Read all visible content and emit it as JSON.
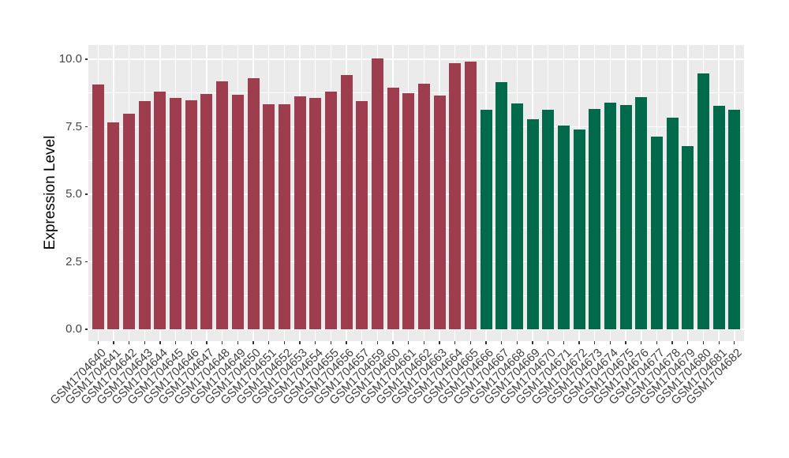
{
  "chart_data": {
    "type": "bar",
    "title": "",
    "xlabel": "",
    "ylabel": "Expression Level",
    "ylim": [
      -0.45,
      10.55
    ],
    "yticks": [
      0,
      2.5,
      5,
      7.5,
      10
    ],
    "ytick_labels": [
      "0.0",
      "2.5",
      "5.0",
      "7.5",
      "10.0"
    ],
    "minor_yticks": [
      1.25,
      3.75,
      6.25,
      8.75
    ],
    "grid": "white major+minor horizontal lines and vertical line at each category on grey panel",
    "legend_position": "none",
    "panel_background": "#EBEBEB",
    "gridline_color": "#FFFFFF",
    "axis_text_color": "#454545",
    "group_colors": {
      "maroon": "#9E3D4D",
      "green": "#006A4A"
    },
    "categories": [
      "GSM1704640",
      "GSM1704641",
      "GSM1704642",
      "GSM1704643",
      "GSM1704644",
      "GSM1704645",
      "GSM1704646",
      "GSM1704647",
      "GSM1704648",
      "GSM1704649",
      "GSM1704650",
      "GSM1704651",
      "GSM1704652",
      "GSM1704653",
      "GSM1704654",
      "GSM1704655",
      "GSM1704656",
      "GSM1704657",
      "GSM1704659",
      "GSM1704660",
      "GSM1704661",
      "GSM1704662",
      "GSM1704663",
      "GSM1704664",
      "GSM1704665",
      "GSM1704666",
      "GSM1704667",
      "GSM1704668",
      "GSM1704669",
      "GSM1704670",
      "GSM1704671",
      "GSM1704672",
      "GSM1704673",
      "GSM1704674",
      "GSM1704675",
      "GSM1704676",
      "GSM1704677",
      "GSM1704678",
      "GSM1704679",
      "GSM1704680",
      "GSM1704681",
      "GSM1704682"
    ],
    "bar_groups": [
      "maroon",
      "maroon",
      "maroon",
      "maroon",
      "maroon",
      "maroon",
      "maroon",
      "maroon",
      "maroon",
      "maroon",
      "maroon",
      "maroon",
      "maroon",
      "maroon",
      "maroon",
      "maroon",
      "maroon",
      "maroon",
      "maroon",
      "maroon",
      "maroon",
      "maroon",
      "maroon",
      "maroon",
      "maroon",
      "green",
      "green",
      "green",
      "green",
      "green",
      "green",
      "green",
      "green",
      "green",
      "green",
      "green",
      "green",
      "green",
      "green",
      "green",
      "green",
      "green"
    ],
    "series": [
      {
        "name": "Expression Level",
        "values": [
          9.06,
          7.66,
          7.99,
          8.44,
          8.81,
          8.56,
          8.49,
          8.71,
          9.19,
          8.68,
          9.31,
          8.32,
          8.32,
          8.63,
          8.57,
          8.8,
          9.42,
          8.46,
          10.03,
          8.96,
          8.74,
          9.08,
          8.65,
          9.85,
          9.9,
          8.13,
          9.15,
          8.36,
          7.79,
          8.14,
          7.54,
          7.4,
          8.16,
          8.4,
          8.3,
          8.61,
          7.12,
          7.83,
          6.78,
          9.46,
          8.28,
          8.13
        ]
      }
    ]
  }
}
